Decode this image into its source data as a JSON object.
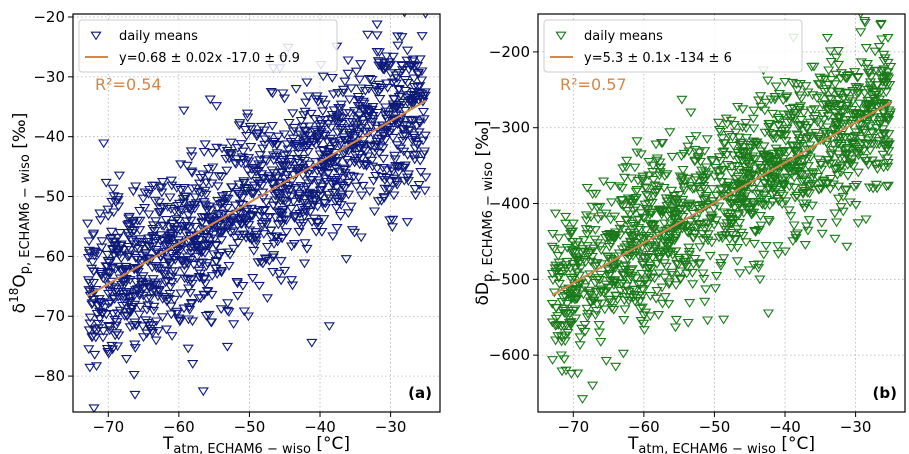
{
  "chart_data": [
    {
      "type": "scatter",
      "panel_label": "(a)",
      "xlabel": {
        "main": "T",
        "sub": "atm, ECHAM6 − wiso",
        "unit": " [°C]"
      },
      "ylabel": {
        "main": "δ",
        "sup": "18",
        "mid": "O",
        "sub": "p, ECHAM6 − wiso",
        "unit": " [‰]"
      },
      "xlim": [
        -75,
        -23
      ],
      "ylim": [
        -86,
        -19.5
      ],
      "xticks": [
        -70,
        -60,
        -50,
        -40,
        -30
      ],
      "yticks": [
        -80,
        -70,
        -60,
        -50,
        -40,
        -30,
        -20
      ],
      "grid": true,
      "legend_position": "top-left",
      "series": [
        {
          "name": "daily means",
          "marker": "triangle-down-open",
          "color": "#0d1a7a",
          "n_points": 1500,
          "description": "daily mean points spread around fit line",
          "x_range": [
            -73,
            -25
          ],
          "scatter_sd": 7.0
        },
        {
          "name": "y=0.68 ± 0.02x -17.0 ± 0.9",
          "type": "line",
          "color": "#d4864a",
          "slope": 0.68,
          "intercept": -17.0,
          "x": [
            -73,
            -25
          ]
        }
      ],
      "annotations": [
        {
          "text": "R²=0.54",
          "color": "#d4864a"
        }
      ]
    },
    {
      "type": "scatter",
      "panel_label": "(b)",
      "xlabel": {
        "main": "T",
        "sub": "atm, ECHAM6 − wiso",
        "unit": " [°C]"
      },
      "ylabel": {
        "main": "δD",
        "sub": "p, ECHAM6 − wiso",
        "unit": " [‰]"
      },
      "xlim": [
        -75,
        -23
      ],
      "ylim": [
        -675,
        -150
      ],
      "xticks": [
        -70,
        -60,
        -50,
        -40,
        -30
      ],
      "yticks": [
        -600,
        -500,
        -400,
        -300,
        -200
      ],
      "grid": true,
      "legend_position": "top-left",
      "series": [
        {
          "name": "daily means",
          "marker": "triangle-down-open",
          "color": "#1a7a1a",
          "n_points": 1500,
          "x_range": [
            -73,
            -25
          ],
          "scatter_sd": 52
        },
        {
          "name": "y=5.3 ± 0.1x -134 ± 6",
          "type": "line",
          "color": "#d4864a",
          "slope": 5.3,
          "intercept": -134,
          "x": [
            -73,
            -25
          ]
        }
      ],
      "annotations": [
        {
          "text": "R²=0.57",
          "color": "#d4864a"
        }
      ]
    }
  ]
}
